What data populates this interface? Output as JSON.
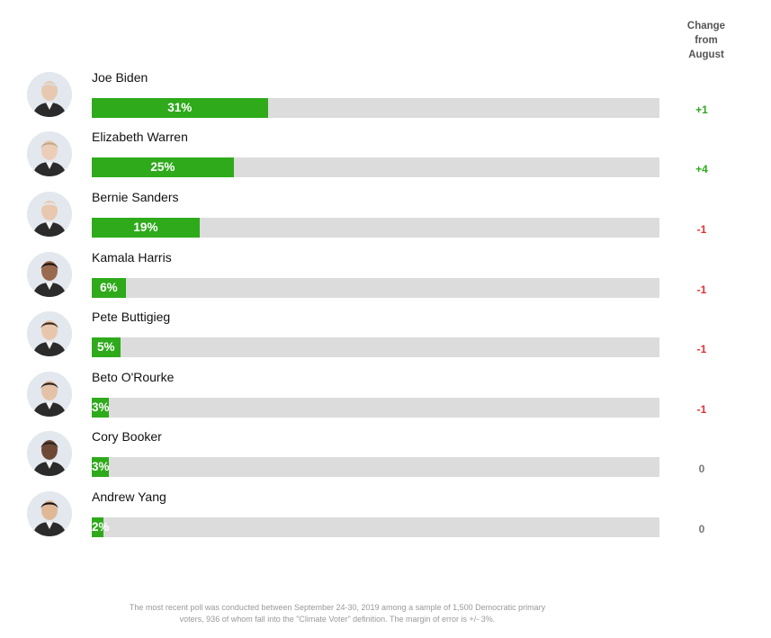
{
  "header": {
    "change_label": [
      "Change",
      "from",
      "August"
    ]
  },
  "colors": {
    "bar": "#2eaa1b",
    "track": "#dcdcdc",
    "positive": "#2eaa1b",
    "negative": "#e03131",
    "neutral": "#777777"
  },
  "chart_data": {
    "type": "bar",
    "orientation": "horizontal",
    "xlim": [
      0,
      100
    ],
    "categories": [
      "Joe Biden",
      "Elizabeth Warren",
      "Bernie Sanders",
      "Kamala Harris",
      "Pete Buttigieg",
      "Beto O'Rourke",
      "Cory Booker",
      "Andrew Yang"
    ],
    "values": [
      31,
      25,
      19,
      6,
      5,
      3,
      3,
      2
    ],
    "value_labels": [
      "31%",
      "25%",
      "19%",
      "6%",
      "5%",
      "3%",
      "3%",
      "2%"
    ],
    "change_from_august": [
      "+1",
      "+4",
      "-1",
      "-1",
      "-1",
      "-1",
      "0",
      "0"
    ]
  },
  "footnote": [
    "The most recent poll was conducted between September 24-30, 2019 among a sample of 1,500 Democratic primary",
    "voters, 936 of whom fall into the \"Climate Voter\" definition. The margin of error is +/- 3%."
  ]
}
